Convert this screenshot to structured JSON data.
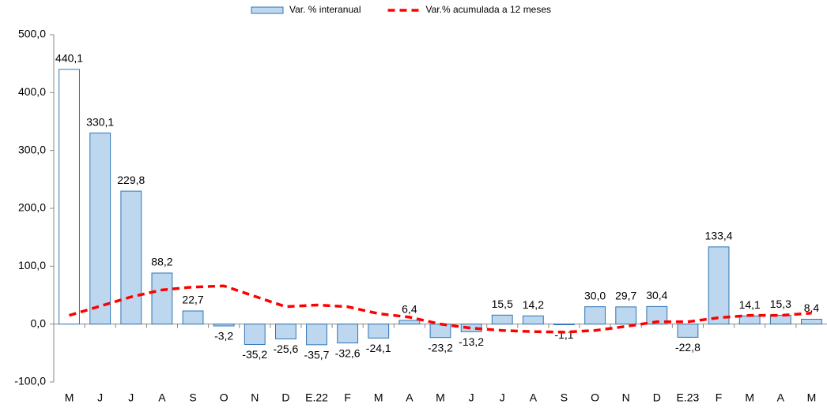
{
  "chart_data": {
    "type": "bar",
    "categories": [
      "M",
      "J",
      "J",
      "A",
      "S",
      "O",
      "N",
      "D",
      "E.22",
      "F",
      "M",
      "A",
      "M",
      "J",
      "J",
      "A",
      "S",
      "O",
      "N",
      "D",
      "E.23",
      "F",
      "M",
      "A",
      "M"
    ],
    "series": [
      {
        "name": "Var. % interanual",
        "type": "bar",
        "color": "#bdd7ee",
        "edge_color": "#2e75b6",
        "fills": [
          "#ffffff",
          "#bdd7ee",
          "#bdd7ee",
          "#bdd7ee",
          "#bdd7ee",
          "#bdd7ee",
          "#bdd7ee",
          "#bdd7ee",
          "#bdd7ee",
          "#bdd7ee",
          "#bdd7ee",
          "#bdd7ee",
          "#bdd7ee",
          "#bdd7ee",
          "#bdd7ee",
          "#bdd7ee",
          "#bdd7ee",
          "#bdd7ee",
          "#bdd7ee",
          "#bdd7ee",
          "#bdd7ee",
          "#bdd7ee",
          "#bdd7ee",
          "#bdd7ee",
          "#bdd7ee"
        ],
        "values": [
          440.1,
          330.1,
          229.8,
          88.2,
          22.7,
          -3.2,
          -35.2,
          -25.6,
          -35.7,
          -32.6,
          -24.1,
          6.4,
          -23.2,
          -13.2,
          15.5,
          14.2,
          -1.1,
          30.0,
          29.7,
          30.4,
          -22.8,
          133.4,
          14.1,
          15.3,
          8.4
        ],
        "value_labels": [
          "440,1",
          "330,1",
          "229,8",
          "88,2",
          "22,7",
          "-3,2",
          "-35,2",
          "-25,6",
          "-35,7",
          "-32,6",
          "-24,1",
          "6,4",
          "-23,2",
          "-13,2",
          "15,5",
          "14,2",
          "-1,1",
          "30,0",
          "29,7",
          "30,4",
          "-22,8",
          "133,4",
          "14,1",
          "15,3",
          "8,4"
        ]
      },
      {
        "name": "Var.% acumulada a 12 meses",
        "type": "line",
        "color": "#ff0000",
        "dashed": true,
        "values": [
          15,
          31,
          47,
          59,
          64,
          66,
          48,
          30,
          33,
          30,
          18,
          12,
          0,
          -7,
          -11,
          -13,
          -14,
          -11,
          -4,
          4,
          4,
          11,
          15,
          15,
          19
        ]
      }
    ],
    "ylim": [
      -100,
      500
    ],
    "yticks": [
      {
        "value": -100,
        "label": "-100,0"
      },
      {
        "value": 0,
        "label": "0,0"
      },
      {
        "value": 100,
        "label": "100,0"
      },
      {
        "value": 200,
        "label": "200,0"
      },
      {
        "value": 300,
        "label": "300,0"
      },
      {
        "value": 400,
        "label": "400,0"
      },
      {
        "value": 500,
        "label": "500,0"
      }
    ],
    "grid": false,
    "legend": "top"
  }
}
